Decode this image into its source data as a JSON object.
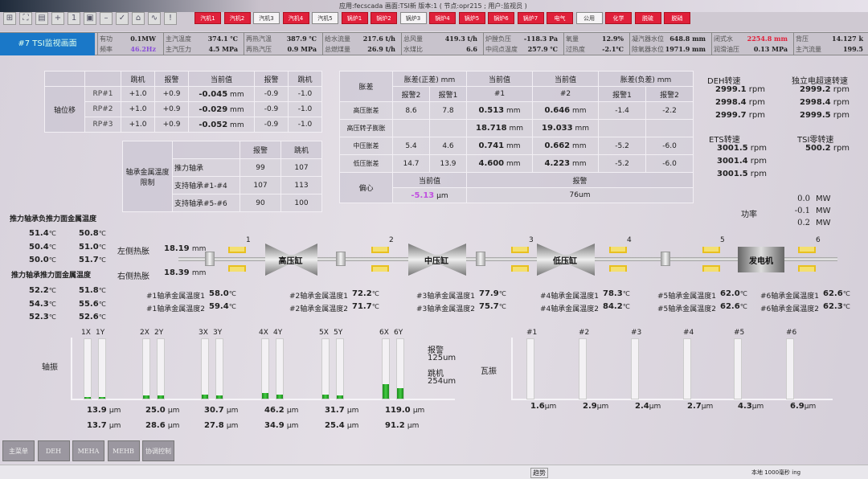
{
  "titlebar": {
    "text": "应用:fecscada  画面:TSI新  版本:1 ( 节点:opr215 ; 用户:监视员 )"
  },
  "toolbar_icons": [
    "layout-icon",
    "fullscreen-icon",
    "print-icon",
    "zoom-in-icon",
    "zoom-reset-icon",
    "save-icon",
    "minus-icon",
    "check-icon",
    "home-icon",
    "trend-icon",
    "alarm-icon"
  ],
  "nav_buttons": [
    {
      "label": "汽机1",
      "active": true
    },
    {
      "label": "汽机2",
      "active": true
    },
    {
      "label": "汽机3",
      "active": false
    },
    {
      "label": "汽机4",
      "active": true
    },
    {
      "label": "汽机5",
      "active": false
    },
    {
      "label": "锅炉1",
      "active": true
    },
    {
      "label": "锅炉2",
      "active": true
    },
    {
      "label": "锅炉3",
      "active": false
    },
    {
      "label": "锅炉4",
      "active": true
    },
    {
      "label": "锅炉5",
      "active": true
    },
    {
      "label": "锅炉6",
      "active": true
    },
    {
      "label": "锅炉7",
      "active": true
    },
    {
      "label": "电气",
      "active": true
    },
    {
      "label": "公用",
      "active": false
    },
    {
      "label": "化学",
      "active": true
    },
    {
      "label": "脱硫",
      "active": true
    },
    {
      "label": "脱硝",
      "active": true
    }
  ],
  "colors": {
    "accent_blue": "#1a78c8",
    "alarm_red": "#e0203a",
    "purple_value": "#8a4fd8",
    "bar_green": "#2aa82a",
    "bearing_yellow": "#e8c020"
  },
  "screen_title": "#7 TSI监视画面",
  "info": [
    [
      {
        "label": "有功",
        "value": "0.1MW"
      },
      {
        "label": "频率",
        "value": "46.2Hz",
        "color": "#8a4fd8"
      }
    ],
    [
      {
        "label": "主汽温度",
        "value": "374.1 ℃"
      },
      {
        "label": "主汽压力",
        "value": "4.5 MPa"
      }
    ],
    [
      {
        "label": "再热汽温",
        "value": "387.9 ℃"
      },
      {
        "label": "再热汽压",
        "value": "0.9 MPa"
      }
    ],
    [
      {
        "label": "给水流量",
        "value": "217.6 t/h"
      },
      {
        "label": "总燃煤量",
        "value": "26.9 t/h"
      }
    ],
    [
      {
        "label": "总风量",
        "value": "419.3 t/h"
      },
      {
        "label": "水煤比",
        "value": "6.6"
      }
    ],
    [
      {
        "label": "炉膛负压",
        "value": "-118.3 Pa"
      },
      {
        "label": "中间点温度",
        "value": "257.9 ℃"
      }
    ],
    [
      {
        "label": "氧量",
        "value": "12.9%"
      },
      {
        "label": "过热度",
        "value": "-2.1℃"
      }
    ],
    [
      {
        "label": "凝汽器水位",
        "value": "648.8 mm"
      },
      {
        "label": "除氧器水位",
        "value": "1971.9 mm"
      }
    ],
    [
      {
        "label": "闭式水",
        "value": "2254.8 mm",
        "color": "#e0203a"
      },
      {
        "label": "润滑油压",
        "value": "0.13 MPa"
      }
    ],
    [
      {
        "label": "背压",
        "value": "14.127 k"
      },
      {
        "label": "主汽流量",
        "value": "199.5"
      }
    ]
  ],
  "axial": {
    "title": "轴位移",
    "headers": [
      "跳机",
      "报警",
      "当前值",
      "报警",
      "跳机"
    ],
    "rows": [
      {
        "name": "RP#1",
        "trip_pos": "+1.0",
        "alarm_pos": "+0.9",
        "value": "-0.045",
        "unit": "mm",
        "alarm_neg": "-0.9",
        "trip_neg": "-1.0"
      },
      {
        "name": "RP#2",
        "trip_pos": "+1.0",
        "alarm_pos": "+0.9",
        "value": "-0.029",
        "unit": "mm",
        "alarm_neg": "-0.9",
        "trip_neg": "-1.0"
      },
      {
        "name": "RP#3",
        "trip_pos": "+1.0",
        "alarm_pos": "+0.9",
        "value": "-0.052",
        "unit": "mm",
        "alarm_neg": "-0.9",
        "trip_neg": "-1.0"
      }
    ]
  },
  "bearing_limits": {
    "title": "轴承金属温度限制",
    "headers": [
      "报警",
      "跳机"
    ],
    "rows": [
      {
        "name": "推力轴承",
        "alarm": "99",
        "trip": "107"
      },
      {
        "name": "支持轴承#1-#4",
        "alarm": "107",
        "trip": "113"
      },
      {
        "name": "支持轴承#5-#6",
        "alarm": "90",
        "trip": "100"
      }
    ]
  },
  "expansion": {
    "title": "胀差",
    "pos_header": "胀差(正差) mm",
    "cur_header": "当前值",
    "neg_header": "胀差(负差) mm",
    "sub": [
      "报警2",
      "报警1",
      "#1",
      "#2",
      "报警1",
      "报警2"
    ],
    "rows": [
      {
        "name": "高压胀差",
        "a2": "8.6",
        "a1": "7.8",
        "v1": "0.513",
        "v2": "0.646",
        "n1": "-1.4",
        "n2": "-2.2"
      },
      {
        "name": "高压转子膨胀",
        "a2": "",
        "a1": "",
        "v1": "18.718",
        "v2": "19.033",
        "n1": "",
        "n2": ""
      },
      {
        "name": "中压胀差",
        "a2": "5.4",
        "a1": "4.6",
        "v1": "0.741",
        "v2": "0.662",
        "n1": "-5.2",
        "n2": "-6.0"
      },
      {
        "name": "低压胀差",
        "a2": "14.7",
        "a1": "13.9",
        "v1": "4.600",
        "v2": "4.223",
        "n1": "-5.2",
        "n2": "-6.0"
      }
    ],
    "unit": "mm",
    "eccentricity": {
      "title": "偏心",
      "cur_header": "当前值",
      "value": "-5.13",
      "unit": "μm",
      "alarm_header": "报警",
      "alarm": "76um"
    }
  },
  "speeds": {
    "deh": {
      "title": "DEH转速",
      "values": [
        "2999.1",
        "2998.4",
        "2999.7"
      ]
    },
    "overspeed": {
      "title": "独立电超速转速",
      "values": [
        "2999.2",
        "2998.4",
        "2999.5"
      ]
    },
    "ets": {
      "title": "ETS转速",
      "values": [
        "3001.5",
        "3001.4",
        "3001.5"
      ]
    },
    "zero": {
      "title": "TSI零转速",
      "values": [
        "500.2"
      ]
    },
    "unit": "rpm"
  },
  "power": {
    "title": "功率",
    "values": [
      "0.0",
      "-0.1",
      "0.2"
    ],
    "unit": "MW"
  },
  "thrust": {
    "neg_title": "推力轴承负推力面金属温度",
    "neg": [
      [
        "51.4",
        "50.8"
      ],
      [
        "50.4",
        "51.0"
      ],
      [
        "50.0",
        "51.7"
      ]
    ],
    "pos_title": "推力轴承推力面金属温度",
    "pos": [
      [
        "52.2",
        "51.8"
      ],
      [
        "54.3",
        "55.6"
      ],
      [
        "52.3",
        "52.6"
      ]
    ],
    "unit": "℃",
    "left_label": "左侧热胀",
    "left_value": "18.19",
    "right_label": "右侧热胀",
    "right_value": "18.39",
    "exp_unit": "mm"
  },
  "shaft": {
    "cylinders": [
      "高压缸",
      "中压缸",
      "低压缸",
      "发电机"
    ],
    "bearing_numbers": [
      "1",
      "2",
      "3",
      "4",
      "5",
      "6"
    ]
  },
  "bearing_temps": [
    {
      "l1": "#1轴承金属温度1",
      "v1": "58.0",
      "l2": "#1轴承金属温度2",
      "v2": "59.4"
    },
    {
      "l1": "#2轴承金属温度1",
      "v1": "72.2",
      "l2": "#2轴承金属温度2",
      "v2": "71.7"
    },
    {
      "l1": "#3轴承金属温度1",
      "v1": "77.9",
      "l2": "#3轴承金属温度2",
      "v2": "75.7"
    },
    {
      "l1": "#4轴承金属温度1",
      "v1": "78.3",
      "l2": "#4轴承金属温度2",
      "v2": "84.2"
    },
    {
      "l1": "#5轴承金属温度1",
      "v1": "62.0",
      "l2": "#5轴承金属温度2",
      "v2": "62.6"
    },
    {
      "l1": "#6轴承金属温度1",
      "v1": "62.6",
      "l2": "#6轴承金属温度2",
      "v2": "62.3"
    }
  ],
  "shaft_vib": {
    "title": "轴振",
    "unit": "μm",
    "scale_max_um": 500,
    "alarm_label": "报警",
    "alarm": "125um",
    "trip_label": "跳机",
    "trip": "254um",
    "pairs": [
      {
        "x_label": "1X",
        "y_label": "1Y",
        "x": 13.9,
        "y": 13.7,
        "x_text": "13.9",
        "y_text": "13.7"
      },
      {
        "x_label": "2X",
        "y_label": "2Y",
        "x": 25.0,
        "y": 28.6,
        "x_text": "25.0",
        "y_text": "28.6"
      },
      {
        "x_label": "3X",
        "y_label": "3Y",
        "x": 30.7,
        "y": 27.8,
        "x_text": "30.7",
        "y_text": "27.8"
      },
      {
        "x_label": "4X",
        "y_label": "4Y",
        "x": 46.2,
        "y": 34.9,
        "x_text": "46.2",
        "y_text": "34.9"
      },
      {
        "x_label": "5X",
        "y_label": "5Y",
        "x": 31.7,
        "y": 25.4,
        "x_text": "31.7",
        "y_text": "25.4"
      },
      {
        "x_label": "6X",
        "y_label": "6Y",
        "x": 119.0,
        "y": 91.2,
        "x_text": "119.0",
        "y_text": "91.2"
      }
    ]
  },
  "pad_vib": {
    "title": "瓦振",
    "unit": "μm",
    "items": [
      {
        "label": "#1",
        "text": "1.6"
      },
      {
        "label": "#2",
        "text": "2.9"
      },
      {
        "label": "#3",
        "text": "2.4"
      },
      {
        "label": "#4",
        "text": "2.7"
      },
      {
        "label": "#5",
        "text": "4.3"
      },
      {
        "label": "#6",
        "text": "6.9"
      }
    ]
  },
  "bottom_buttons": [
    "主菜单",
    "DEH",
    "MEHA",
    "MEHB",
    "协调控制"
  ],
  "status": {
    "center": "趋势",
    "right": "本地 1000毫秒 ing"
  }
}
